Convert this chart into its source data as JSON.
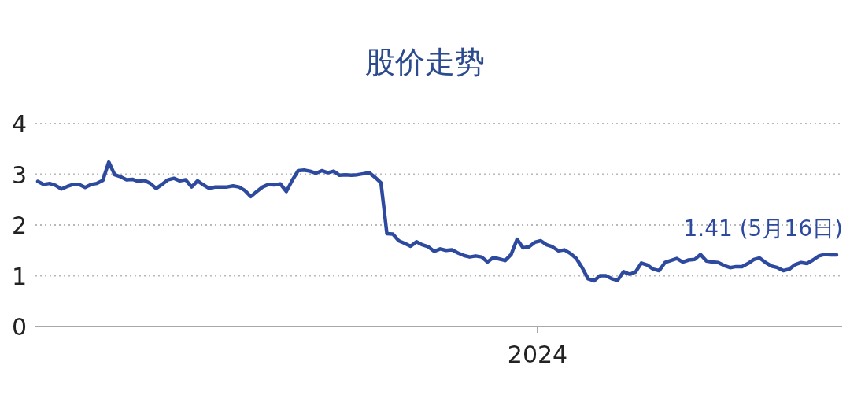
{
  "chart_data": {
    "type": "line",
    "title": "股价走势",
    "categories": [
      null,
      null,
      null,
      null,
      null,
      null,
      null,
      null,
      null,
      null,
      null,
      null,
      null,
      null,
      null,
      null,
      null,
      null,
      null,
      null,
      null,
      null,
      null,
      null,
      null,
      null,
      null,
      null,
      null,
      null,
      null,
      null,
      null,
      null,
      null,
      null,
      null,
      null,
      null,
      null,
      null,
      null,
      null,
      null,
      null,
      null,
      null,
      null,
      null,
      null,
      null,
      null,
      null,
      null,
      null,
      null,
      null,
      null,
      null,
      null,
      null,
      null,
      null,
      null,
      null,
      null,
      null,
      null,
      null,
      null,
      null,
      null,
      null,
      null,
      null,
      null,
      null,
      null,
      null,
      null,
      null,
      null,
      null,
      null,
      null,
      null,
      null,
      null,
      null,
      null,
      null,
      null,
      null,
      null,
      null,
      null,
      null,
      null,
      null,
      null,
      null,
      null,
      null,
      null,
      null,
      null,
      null,
      null,
      null,
      null,
      null,
      null,
      null,
      null,
      null,
      null,
      null,
      null,
      null,
      null,
      null,
      null,
      null,
      null,
      null,
      null,
      null,
      null,
      null,
      null,
      null,
      null,
      null,
      null,
      null,
      null
    ],
    "values": [
      2.86,
      2.8,
      2.82,
      2.78,
      2.71,
      2.76,
      2.8,
      2.8,
      2.74,
      2.8,
      2.82,
      2.88,
      3.24,
      2.99,
      2.95,
      2.89,
      2.9,
      2.86,
      2.88,
      2.82,
      2.72,
      2.8,
      2.89,
      2.92,
      2.87,
      2.89,
      2.75,
      2.87,
      2.79,
      2.72,
      2.75,
      2.75,
      2.75,
      2.77,
      2.75,
      2.68,
      2.56,
      2.66,
      2.75,
      2.8,
      2.79,
      2.81,
      2.66,
      2.88,
      3.07,
      3.08,
      3.06,
      3.02,
      3.07,
      3.03,
      3.06,
      2.98,
      2.99,
      2.98,
      2.99,
      3.01,
      3.03,
      2.94,
      2.83,
      1.83,
      1.82,
      1.69,
      1.64,
      1.58,
      1.67,
      1.61,
      1.57,
      1.48,
      1.53,
      1.5,
      1.51,
      1.45,
      1.4,
      1.37,
      1.39,
      1.37,
      1.27,
      1.36,
      1.33,
      1.3,
      1.42,
      1.72,
      1.55,
      1.57,
      1.66,
      1.69,
      1.61,
      1.57,
      1.49,
      1.51,
      1.44,
      1.34,
      1.16,
      0.94,
      0.9,
      1.0,
      1.0,
      0.94,
      0.91,
      1.08,
      1.03,
      1.07,
      1.25,
      1.21,
      1.13,
      1.1,
      1.26,
      1.3,
      1.34,
      1.27,
      1.31,
      1.32,
      1.42,
      1.29,
      1.27,
      1.26,
      1.2,
      1.16,
      1.18,
      1.18,
      1.24,
      1.32,
      1.35,
      1.26,
      1.19,
      1.16,
      1.1,
      1.13,
      1.22,
      1.26,
      1.24,
      1.31,
      1.39,
      1.42,
      1.41,
      1.41
    ],
    "color": "#2d4a9e",
    "ylim": [
      0,
      4
    ],
    "yticks": [
      0,
      1,
      2,
      3,
      4
    ],
    "grid": "y",
    "annotations": [
      {
        "text": "1.41 (5月16日)",
        "y": 1.41
      },
      "2024"
    ]
  }
}
